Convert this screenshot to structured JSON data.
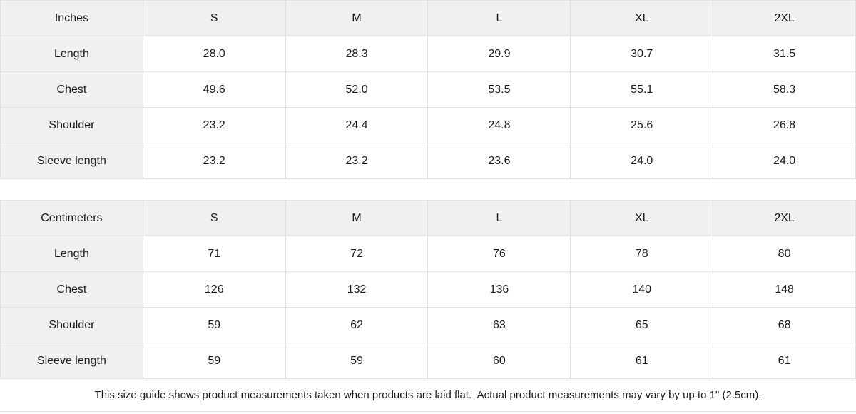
{
  "theme": {
    "background": "#ffffff",
    "shaded_cell_bg": "#f0f0f0",
    "border_color": "#e0e0e0",
    "text_color": "#1a1a1a"
  },
  "tables": [
    {
      "unit": "Inches",
      "sizes": [
        "S",
        "M",
        "L",
        "XL",
        "2XL"
      ],
      "rows": [
        {
          "label": "Length",
          "values": [
            "28.0",
            "28.3",
            "29.9",
            "30.7",
            "31.5"
          ]
        },
        {
          "label": "Chest",
          "values": [
            "49.6",
            "52.0",
            "53.5",
            "55.1",
            "58.3"
          ]
        },
        {
          "label": "Shoulder",
          "values": [
            "23.2",
            "24.4",
            "24.8",
            "25.6",
            "26.8"
          ]
        },
        {
          "label": "Sleeve length",
          "values": [
            "23.2",
            "23.2",
            "23.6",
            "24.0",
            "24.0"
          ]
        }
      ]
    },
    {
      "unit": "Centimeters",
      "sizes": [
        "S",
        "M",
        "L",
        "XL",
        "2XL"
      ],
      "rows": [
        {
          "label": "Length",
          "values": [
            "71",
            "72",
            "76",
            "78",
            "80"
          ]
        },
        {
          "label": "Chest",
          "values": [
            "126",
            "132",
            "136",
            "140",
            "148"
          ]
        },
        {
          "label": "Shoulder",
          "values": [
            "59",
            "62",
            "63",
            "65",
            "68"
          ]
        },
        {
          "label": "Sleeve length",
          "values": [
            "59",
            "59",
            "60",
            "61",
            "61"
          ]
        }
      ]
    }
  ],
  "footer": {
    "note": "This size guide shows product measurements taken when products are laid flat.  Actual product measurements may vary by up to 1\" (2.5cm)."
  },
  "chart_data": [
    {
      "type": "table",
      "title": "Inches",
      "columns": [
        "Inches",
        "S",
        "M",
        "L",
        "XL",
        "2XL"
      ],
      "rows": [
        [
          "Length",
          "28.0",
          "28.3",
          "29.9",
          "30.7",
          "31.5"
        ],
        [
          "Chest",
          "49.6",
          "52.0",
          "53.5",
          "55.1",
          "58.3"
        ],
        [
          "Shoulder",
          "23.2",
          "24.4",
          "24.8",
          "25.6",
          "26.8"
        ],
        [
          "Sleeve length",
          "23.2",
          "23.2",
          "23.6",
          "24.0",
          "24.0"
        ]
      ]
    },
    {
      "type": "table",
      "title": "Centimeters",
      "columns": [
        "Centimeters",
        "S",
        "M",
        "L",
        "XL",
        "2XL"
      ],
      "rows": [
        [
          "Length",
          "71",
          "72",
          "76",
          "78",
          "80"
        ],
        [
          "Chest",
          "126",
          "132",
          "136",
          "140",
          "148"
        ],
        [
          "Shoulder",
          "59",
          "62",
          "63",
          "65",
          "68"
        ],
        [
          "Sleeve length",
          "59",
          "59",
          "60",
          "61",
          "61"
        ]
      ]
    }
  ]
}
